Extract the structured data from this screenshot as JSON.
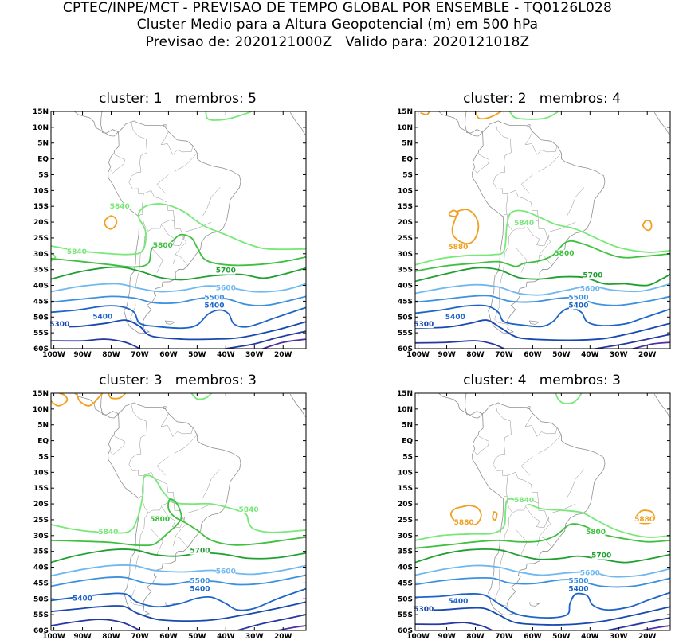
{
  "header": {
    "line1": "CPTEC/INPE/MCT - PREVISAO DE TEMPO GLOBAL POR ENSEMBLE - TQ0126L028",
    "line2": "Cluster Medio para a Altura Geopotencial (m) em 500 hPa",
    "line3": "Previsao de: 2020121000Z   Valido para: 2020121018Z"
  },
  "axes": {
    "lat_labels": [
      "15N",
      "10N",
      "5N",
      "EQ",
      "5S",
      "10S",
      "15S",
      "20S",
      "25S",
      "30S",
      "35S",
      "40S",
      "45S",
      "50S",
      "55S",
      "60S"
    ],
    "lon_labels": [
      "100W",
      "90W",
      "80W",
      "70W",
      "60W",
      "50W",
      "40W",
      "30W",
      "20W"
    ]
  },
  "colors": {
    "c5880": "#f0a020",
    "c5840": "#78e878",
    "c5800": "#40c040",
    "c5700": "#20a030",
    "c5600": "#70b8f0",
    "c5500": "#3c90e0",
    "c5400": "#1c64c8",
    "c5300": "#1848b0",
    "c5200": "#2838a0",
    "c5100": "#5030a0",
    "coast": "#909090"
  },
  "panels": [
    {
      "title": "cluster: 1   membros: 5",
      "labels": [
        {
          "text": "5840",
          "color": "c5840",
          "lon": -77,
          "lat": -15.7
        },
        {
          "text": "5840",
          "color": "c5840",
          "lon": -92,
          "lat": -30
        },
        {
          "text": "5800",
          "color": "c5800",
          "lon": -62,
          "lat": -28
        },
        {
          "text": "5700",
          "color": "c5700",
          "lon": -40,
          "lat": -36
        },
        {
          "text": "5600",
          "color": "c5600",
          "lon": -40,
          "lat": -41.5
        },
        {
          "text": "5500",
          "color": "c5500",
          "lon": -44,
          "lat": -44.5
        },
        {
          "text": "5400",
          "color": "c5400",
          "lon": -44,
          "lat": -47
        },
        {
          "text": "5400",
          "color": "c5400",
          "lon": -83,
          "lat": -50.5
        },
        {
          "text": "5300",
          "color": "c5300",
          "lon": -98,
          "lat": -53
        }
      ]
    },
    {
      "title": "cluster: 2   membros: 4",
      "labels": [
        {
          "text": "5880",
          "color": "c5880",
          "lon": -86,
          "lat": -28.5
        },
        {
          "text": "5840",
          "color": "c5840",
          "lon": -63,
          "lat": -21
        },
        {
          "text": "5800",
          "color": "c5800",
          "lon": -49,
          "lat": -30.5
        },
        {
          "text": "5700",
          "color": "c5700",
          "lon": -39,
          "lat": -37.5
        },
        {
          "text": "5600",
          "color": "c5600",
          "lon": -40,
          "lat": -41.7
        },
        {
          "text": "5500",
          "color": "c5500",
          "lon": -44,
          "lat": -44.5
        },
        {
          "text": "5400",
          "color": "c5400",
          "lon": -44,
          "lat": -47
        },
        {
          "text": "5400",
          "color": "c5400",
          "lon": -87,
          "lat": -50.7
        },
        {
          "text": "5300",
          "color": "c5300",
          "lon": -98,
          "lat": -53
        }
      ]
    },
    {
      "title": "cluster: 3   membros: 3",
      "labels": [
        {
          "text": "5840",
          "color": "c5840",
          "lon": -32,
          "lat": -22.5
        },
        {
          "text": "5840",
          "color": "c5840",
          "lon": -81,
          "lat": -29.5
        },
        {
          "text": "5800",
          "color": "c5800",
          "lon": -63,
          "lat": -25.5
        },
        {
          "text": "5700",
          "color": "c5700",
          "lon": -49,
          "lat": -35.5
        },
        {
          "text": "5600",
          "color": "c5600",
          "lon": -40,
          "lat": -42
        },
        {
          "text": "5500",
          "color": "c5500",
          "lon": -49,
          "lat": -45
        },
        {
          "text": "5400",
          "color": "c5400",
          "lon": -49,
          "lat": -47.5
        },
        {
          "text": "5400",
          "color": "c5400",
          "lon": -90,
          "lat": -50.5
        }
      ]
    },
    {
      "title": "cluster: 4   membros: 3",
      "labels": [
        {
          "text": "5880",
          "color": "c5880",
          "lon": -84,
          "lat": -26.5
        },
        {
          "text": "5880",
          "color": "c5880",
          "lon": -21,
          "lat": -25.5
        },
        {
          "text": "5840",
          "color": "c5840",
          "lon": -63,
          "lat": -19.5
        },
        {
          "text": "5800",
          "color": "c5800",
          "lon": -38,
          "lat": -29.5
        },
        {
          "text": "5700",
          "color": "c5700",
          "lon": -36,
          "lat": -37
        },
        {
          "text": "5600",
          "color": "c5600",
          "lon": -40,
          "lat": -42.5
        },
        {
          "text": "5500",
          "color": "c5500",
          "lon": -44,
          "lat": -45
        },
        {
          "text": "5400",
          "color": "c5400",
          "lon": -44,
          "lat": -47.5
        },
        {
          "text": "5400",
          "color": "c5400",
          "lon": -86,
          "lat": -51.5
        },
        {
          "text": "5300",
          "color": "c5300",
          "lon": -98,
          "lat": -54
        }
      ]
    }
  ]
}
